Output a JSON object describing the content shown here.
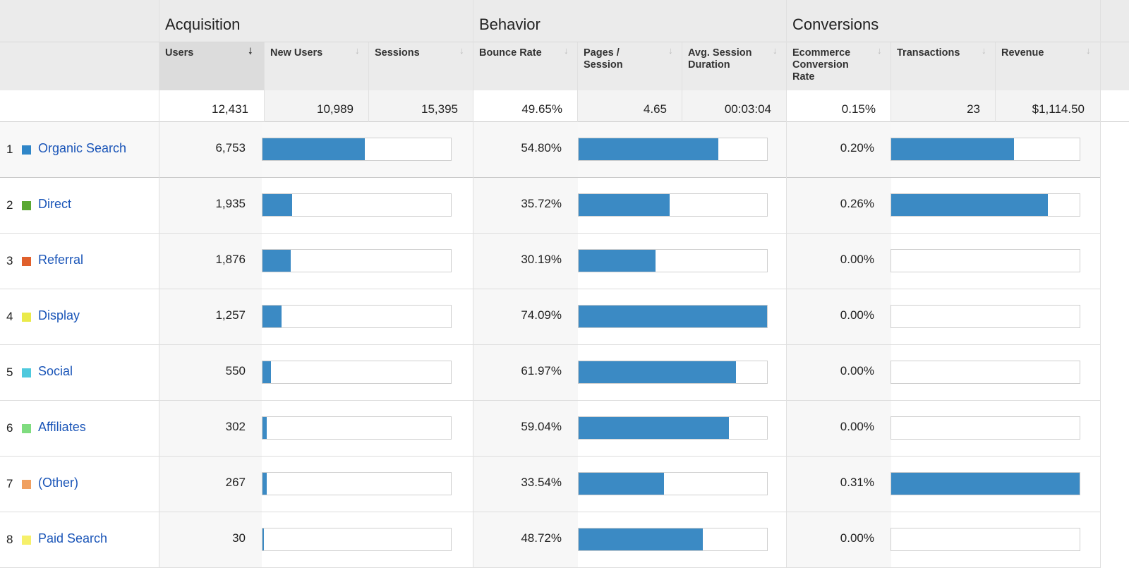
{
  "groups": {
    "acquisition": "Acquisition",
    "behavior": "Behavior",
    "conversions": "Conversions"
  },
  "columns": {
    "users": "Users",
    "new_users": "New Users",
    "sessions": "Sessions",
    "bounce_rate": "Bounce Rate",
    "pages_session": [
      "Pages /",
      "Session"
    ],
    "avg_session_duration": [
      "Avg. Session",
      "Duration"
    ],
    "ecommerce_conversion_rate": [
      "Ecommerce",
      "Conversion",
      "Rate"
    ],
    "transactions": "Transactions",
    "revenue": "Revenue"
  },
  "sort_glyphs": {
    "active": "🠗",
    "inactive": "↓"
  },
  "totals": {
    "users": "12,431",
    "new_users": "10,989",
    "sessions": "15,395",
    "bounce_rate": "49.65%",
    "pages_session": "4.65",
    "avg_session_duration": "00:03:04",
    "ecommerce_conversion_rate": "0.15%",
    "transactions": "23",
    "revenue": "$1,114.50"
  },
  "bar_color": "#3b8ac4",
  "rows": [
    {
      "num": "1",
      "channel": "Organic Search",
      "color": "#2f86c8",
      "users": "6,753",
      "bounce_rate": "54.80%",
      "conv_rate": "0.20%",
      "users_bar": 0.543,
      "bounce_bar": 0.74,
      "conv_bar": 0.65
    },
    {
      "num": "2",
      "channel": "Direct",
      "color": "#5aa832",
      "users": "1,935",
      "bounce_rate": "35.72%",
      "conv_rate": "0.26%",
      "users_bar": 0.156,
      "bounce_bar": 0.482,
      "conv_bar": 0.832
    },
    {
      "num": "3",
      "channel": "Referral",
      "color": "#e0602c",
      "users": "1,876",
      "bounce_rate": "30.19%",
      "conv_rate": "0.00%",
      "users_bar": 0.151,
      "bounce_bar": 0.407,
      "conv_bar": 0
    },
    {
      "num": "4",
      "channel": "Display",
      "color": "#eaea4a",
      "users": "1,257",
      "bounce_rate": "74.09%",
      "conv_rate": "0.00%",
      "users_bar": 0.101,
      "bounce_bar": 1.0,
      "conv_bar": 0
    },
    {
      "num": "5",
      "channel": "Social",
      "color": "#4ec9dd",
      "users": "550",
      "bounce_rate": "61.97%",
      "conv_rate": "0.00%",
      "users_bar": 0.044,
      "bounce_bar": 0.836,
      "conv_bar": 0
    },
    {
      "num": "6",
      "channel": "Affiliates",
      "color": "#7fdc7f",
      "users": "302",
      "bounce_rate": "59.04%",
      "conv_rate": "0.00%",
      "users_bar": 0.024,
      "bounce_bar": 0.797,
      "conv_bar": 0
    },
    {
      "num": "7",
      "channel": "(Other)",
      "color": "#f0a060",
      "users": "267",
      "bounce_rate": "33.54%",
      "conv_rate": "0.31%",
      "users_bar": 0.021,
      "bounce_bar": 0.453,
      "conv_bar": 1.0
    },
    {
      "num": "8",
      "channel": "Paid Search",
      "color": "#f6f06a",
      "users": "30",
      "bounce_rate": "48.72%",
      "conv_rate": "0.00%",
      "users_bar": 0.002,
      "bounce_bar": 0.658,
      "conv_bar": 0
    }
  ]
}
